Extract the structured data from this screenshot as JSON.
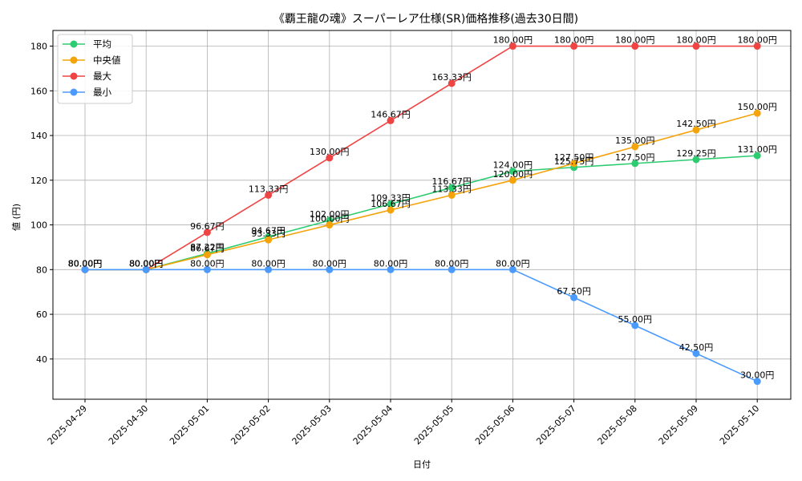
{
  "chart_data": {
    "type": "line",
    "title": "《覇王龍の魂》スーパーレア仕様(SR)価格推移(過去30日間)",
    "xlabel": "日付",
    "ylabel": "値 (円)",
    "categories": [
      "2025-04-29",
      "2025-04-30",
      "2025-05-01",
      "2025-05-02",
      "2025-05-03",
      "2025-05-04",
      "2025-05-05",
      "2025-05-06",
      "2025-05-07",
      "2025-05-08",
      "2025-05-09",
      "2025-05-10"
    ],
    "ylim": [
      22,
      187
    ],
    "yticks": [
      40,
      60,
      80,
      100,
      120,
      140,
      160,
      180
    ],
    "grid": true,
    "legend_position": "top-left",
    "series": [
      {
        "name": "平均",
        "color": "#2ecc71",
        "values": [
          80,
          80,
          87.22,
          94.67,
          102,
          109.33,
          116.67,
          124,
          125.75,
          127.5,
          129.25,
          131
        ],
        "labels": [
          "80.00円",
          "80.00円",
          "87.22円",
          "94.67円",
          "102.00円",
          "109.33円",
          "116.67円",
          "124.00円",
          "125.75円",
          "127.50円",
          "129.25円",
          "131.00円"
        ]
      },
      {
        "name": "中央値",
        "color": "#f5a30a",
        "values": [
          80,
          80,
          86.67,
          93.33,
          100,
          106.67,
          113.33,
          120,
          127.5,
          135,
          142.5,
          150
        ],
        "labels": [
          "80.00円",
          "80.00円",
          "86.67円",
          "93.33円",
          "100.00円",
          "106.67円",
          "113.33円",
          "120.00円",
          "127.50円",
          "135.00円",
          "142.50円",
          "150.00円"
        ]
      },
      {
        "name": "最大",
        "color": "#ef4444",
        "values": [
          80,
          80,
          96.67,
          113.33,
          130,
          146.67,
          163.33,
          180,
          180,
          180,
          180,
          180
        ],
        "labels": [
          "80.00円",
          "80.00円",
          "96.67円",
          "113.33円",
          "130.00円",
          "146.67円",
          "163.33円",
          "180.00円",
          "180.00円",
          "180.00円",
          "180.00円",
          "180.00円"
        ]
      },
      {
        "name": "最小",
        "color": "#4b9bff",
        "values": [
          80,
          80,
          80,
          80,
          80,
          80,
          80,
          80,
          67.5,
          55,
          42.5,
          30
        ],
        "labels": [
          "80.00円",
          "80.00円",
          "80.00円",
          "80.00円",
          "80.00円",
          "80.00円",
          "80.00円",
          "80.00円",
          "67.50円",
          "55.00円",
          "42.50円",
          "30.00円"
        ]
      }
    ]
  }
}
